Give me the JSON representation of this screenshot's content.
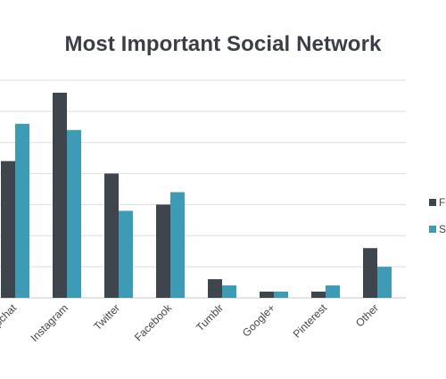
{
  "chart_data": {
    "type": "bar",
    "title": "Most Important Social Network",
    "xlabel": "",
    "ylabel": "",
    "categories": [
      "Snapchat",
      "Instagram",
      "Twitter",
      "Facebook",
      "Tumblr",
      "Google+",
      "Pinterest",
      "Other"
    ],
    "series": [
      {
        "name": "Fa",
        "color": "#3f454d",
        "values": [
          22,
          33,
          20,
          15,
          3,
          1,
          1,
          8
        ]
      },
      {
        "name": "Sp",
        "color": "#3d9bb6",
        "values": [
          28,
          27,
          14,
          17,
          2,
          1,
          2,
          5
        ]
      }
    ],
    "ylim": [
      0,
      35
    ],
    "gridlines": true,
    "legend_position": "right"
  }
}
